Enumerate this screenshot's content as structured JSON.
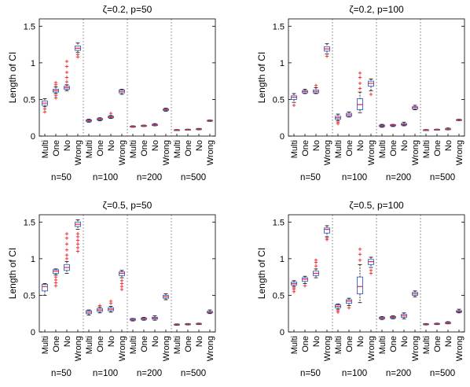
{
  "figure": {
    "ylabel": "Length of CI",
    "method_labels": [
      "Multi",
      "One",
      "No",
      "Wrong"
    ],
    "group_labels": [
      "n=50",
      "n=100",
      "n=200",
      "n=500"
    ],
    "y_ticks": [
      "0",
      "0.5",
      "1",
      "1.5"
    ],
    "colors": {
      "box": "#3a5fcd",
      "median": "#e8282b",
      "outlier": "#e8282b",
      "whisker": "#000000",
      "separator": "#555555"
    }
  },
  "chart_data": [
    {
      "type": "boxplot",
      "title": "ζ=0.2, p=50",
      "ylabel": "Length of CI",
      "ylim": [
        0,
        1.6
      ],
      "yticks": [
        0,
        0.5,
        1,
        1.5
      ],
      "groups": [
        "n=50",
        "n=100",
        "n=200",
        "n=500"
      ],
      "methods": [
        "Multi",
        "One",
        "No",
        "Wrong"
      ],
      "boxes": [
        {
          "group": "n=50",
          "method": "Multi",
          "min": 0.4,
          "q1": 0.42,
          "median": 0.45,
          "q3": 0.48,
          "max": 0.51,
          "outliers": [
            0.33,
            0.37
          ]
        },
        {
          "group": "n=50",
          "method": "One",
          "min": 0.58,
          "q1": 0.6,
          "median": 0.62,
          "q3": 0.64,
          "max": 0.67,
          "outliers": [
            0.52,
            0.55,
            0.7,
            0.73
          ]
        },
        {
          "group": "n=50",
          "method": "No",
          "min": 0.62,
          "q1": 0.64,
          "median": 0.66,
          "q3": 0.68,
          "max": 0.7,
          "outliers": [
            0.74,
            0.8,
            0.87,
            0.95,
            1.02
          ]
        },
        {
          "group": "n=50",
          "method": "Wrong",
          "min": 1.14,
          "q1": 1.17,
          "median": 1.2,
          "q3": 1.23,
          "max": 1.27,
          "outliers": [
            1.08,
            1.11
          ]
        },
        {
          "group": "n=100",
          "method": "Multi",
          "min": 0.19,
          "q1": 0.2,
          "median": 0.21,
          "q3": 0.22,
          "max": 0.23,
          "outliers": []
        },
        {
          "group": "n=100",
          "method": "One",
          "min": 0.21,
          "q1": 0.22,
          "median": 0.23,
          "q3": 0.24,
          "max": 0.25,
          "outliers": []
        },
        {
          "group": "n=100",
          "method": "No",
          "min": 0.24,
          "q1": 0.25,
          "median": 0.26,
          "q3": 0.27,
          "max": 0.28,
          "outliers": [
            0.31
          ]
        },
        {
          "group": "n=100",
          "method": "Wrong",
          "min": 0.57,
          "q1": 0.59,
          "median": 0.61,
          "q3": 0.63,
          "max": 0.64,
          "outliers": []
        },
        {
          "group": "n=200",
          "method": "Multi",
          "min": 0.12,
          "q1": 0.125,
          "median": 0.13,
          "q3": 0.135,
          "max": 0.14,
          "outliers": []
        },
        {
          "group": "n=200",
          "method": "One",
          "min": 0.13,
          "q1": 0.135,
          "median": 0.14,
          "q3": 0.145,
          "max": 0.15,
          "outliers": []
        },
        {
          "group": "n=200",
          "method": "No",
          "min": 0.14,
          "q1": 0.145,
          "median": 0.15,
          "q3": 0.16,
          "max": 0.17,
          "outliers": []
        },
        {
          "group": "n=200",
          "method": "Wrong",
          "min": 0.34,
          "q1": 0.35,
          "median": 0.36,
          "q3": 0.37,
          "max": 0.38,
          "outliers": []
        },
        {
          "group": "n=500",
          "method": "Multi",
          "min": 0.075,
          "q1": 0.08,
          "median": 0.083,
          "q3": 0.086,
          "max": 0.09,
          "outliers": []
        },
        {
          "group": "n=500",
          "method": "One",
          "min": 0.08,
          "q1": 0.085,
          "median": 0.088,
          "q3": 0.091,
          "max": 0.095,
          "outliers": []
        },
        {
          "group": "n=500",
          "method": "No",
          "min": 0.085,
          "q1": 0.09,
          "median": 0.095,
          "q3": 0.1,
          "max": 0.105,
          "outliers": []
        },
        {
          "group": "n=500",
          "method": "Wrong",
          "min": 0.2,
          "q1": 0.205,
          "median": 0.21,
          "q3": 0.215,
          "max": 0.22,
          "outliers": []
        }
      ]
    },
    {
      "type": "boxplot",
      "title": "ζ=0.2, p=100",
      "ylabel": "Length of CI",
      "ylim": [
        0,
        1.6
      ],
      "yticks": [
        0,
        0.5,
        1,
        1.5
      ],
      "groups": [
        "n=50",
        "n=100",
        "n=200",
        "n=500"
      ],
      "methods": [
        "Multi",
        "One",
        "No",
        "Wrong"
      ],
      "boxes": [
        {
          "group": "n=50",
          "method": "Multi",
          "min": 0.46,
          "q1": 0.5,
          "median": 0.53,
          "q3": 0.55,
          "max": 0.58,
          "outliers": [
            0.42
          ]
        },
        {
          "group": "n=50",
          "method": "One",
          "min": 0.58,
          "q1": 0.59,
          "median": 0.61,
          "q3": 0.62,
          "max": 0.64,
          "outliers": []
        },
        {
          "group": "n=50",
          "method": "No",
          "min": 0.58,
          "q1": 0.59,
          "median": 0.61,
          "q3": 0.63,
          "max": 0.66,
          "outliers": [
            0.69
          ]
        },
        {
          "group": "n=50",
          "method": "Wrong",
          "min": 1.12,
          "q1": 1.16,
          "median": 1.19,
          "q3": 1.22,
          "max": 1.26,
          "outliers": [
            1.09
          ]
        },
        {
          "group": "n=100",
          "method": "Multi",
          "min": 0.21,
          "q1": 0.23,
          "median": 0.25,
          "q3": 0.27,
          "max": 0.3,
          "outliers": [
            0.17,
            0.19
          ]
        },
        {
          "group": "n=100",
          "method": "One",
          "min": 0.26,
          "q1": 0.27,
          "median": 0.29,
          "q3": 0.31,
          "max": 0.33,
          "outliers": []
        },
        {
          "group": "n=100",
          "method": "No",
          "min": 0.32,
          "q1": 0.36,
          "median": 0.43,
          "q3": 0.51,
          "max": 0.6,
          "outliers": [
            0.65,
            0.72,
            0.8,
            0.86
          ]
        },
        {
          "group": "n=100",
          "method": "Wrong",
          "min": 0.62,
          "q1": 0.68,
          "median": 0.72,
          "q3": 0.75,
          "max": 0.78,
          "outliers": [
            0.57
          ]
        },
        {
          "group": "n=200",
          "method": "Multi",
          "min": 0.12,
          "q1": 0.13,
          "median": 0.14,
          "q3": 0.15,
          "max": 0.16,
          "outliers": []
        },
        {
          "group": "n=200",
          "method": "One",
          "min": 0.13,
          "q1": 0.14,
          "median": 0.15,
          "q3": 0.155,
          "max": 0.16,
          "outliers": []
        },
        {
          "group": "n=200",
          "method": "No",
          "min": 0.14,
          "q1": 0.15,
          "median": 0.16,
          "q3": 0.17,
          "max": 0.19,
          "outliers": []
        },
        {
          "group": "n=200",
          "method": "Wrong",
          "min": 0.36,
          "q1": 0.37,
          "median": 0.39,
          "q3": 0.4,
          "max": 0.42,
          "outliers": []
        },
        {
          "group": "n=500",
          "method": "Multi",
          "min": 0.075,
          "q1": 0.08,
          "median": 0.083,
          "q3": 0.086,
          "max": 0.09,
          "outliers": []
        },
        {
          "group": "n=500",
          "method": "One",
          "min": 0.08,
          "q1": 0.085,
          "median": 0.088,
          "q3": 0.091,
          "max": 0.095,
          "outliers": []
        },
        {
          "group": "n=500",
          "method": "No",
          "min": 0.085,
          "q1": 0.09,
          "median": 0.095,
          "q3": 0.1,
          "max": 0.11,
          "outliers": []
        },
        {
          "group": "n=500",
          "method": "Wrong",
          "min": 0.21,
          "q1": 0.215,
          "median": 0.22,
          "q3": 0.225,
          "max": 0.23,
          "outliers": []
        }
      ]
    },
    {
      "type": "boxplot",
      "title": "ζ=0.5, p=50",
      "ylabel": "Length of CI",
      "ylim": [
        0,
        1.6
      ],
      "yticks": [
        0,
        0.5,
        1,
        1.5
      ],
      "groups": [
        "n=50",
        "n=100",
        "n=200",
        "n=500"
      ],
      "methods": [
        "Multi",
        "One",
        "No",
        "Wrong"
      ],
      "boxes": [
        {
          "group": "n=50",
          "method": "Multi",
          "min": 0.5,
          "q1": 0.56,
          "median": 0.62,
          "q3": 0.65,
          "max": 0.66,
          "outliers": []
        },
        {
          "group": "n=50",
          "method": "One",
          "min": 0.78,
          "q1": 0.8,
          "median": 0.83,
          "q3": 0.85,
          "max": 0.86,
          "outliers": [
            0.63,
            0.67,
            0.71,
            0.75
          ]
        },
        {
          "group": "n=50",
          "method": "No",
          "min": 0.8,
          "q1": 0.84,
          "median": 0.88,
          "q3": 0.92,
          "max": 0.96,
          "outliers": [
            1.0,
            1.05,
            1.12,
            1.2,
            1.28,
            1.34
          ]
        },
        {
          "group": "n=50",
          "method": "Wrong",
          "min": 1.4,
          "q1": 1.44,
          "median": 1.47,
          "q3": 1.5,
          "max": 1.53,
          "outliers": [
            1.1,
            1.15,
            1.2,
            1.25,
            1.3,
            1.34
          ]
        },
        {
          "group": "n=100",
          "method": "Multi",
          "min": 0.23,
          "q1": 0.25,
          "median": 0.27,
          "q3": 0.29,
          "max": 0.3,
          "outliers": []
        },
        {
          "group": "n=100",
          "method": "One",
          "min": 0.26,
          "q1": 0.28,
          "median": 0.3,
          "q3": 0.32,
          "max": 0.34,
          "outliers": [
            0.36
          ]
        },
        {
          "group": "n=100",
          "method": "No",
          "min": 0.27,
          "q1": 0.29,
          "median": 0.31,
          "q3": 0.33,
          "max": 0.35,
          "outliers": [
            0.39,
            0.42
          ]
        },
        {
          "group": "n=100",
          "method": "Wrong",
          "min": 0.74,
          "q1": 0.77,
          "median": 0.8,
          "q3": 0.82,
          "max": 0.84,
          "outliers": [
            0.58,
            0.62,
            0.66,
            0.7
          ]
        },
        {
          "group": "n=200",
          "method": "Multi",
          "min": 0.15,
          "q1": 0.16,
          "median": 0.17,
          "q3": 0.18,
          "max": 0.185,
          "outliers": []
        },
        {
          "group": "n=200",
          "method": "One",
          "min": 0.16,
          "q1": 0.17,
          "median": 0.18,
          "q3": 0.19,
          "max": 0.2,
          "outliers": []
        },
        {
          "group": "n=200",
          "method": "No",
          "min": 0.16,
          "q1": 0.175,
          "median": 0.19,
          "q3": 0.2,
          "max": 0.22,
          "outliers": []
        },
        {
          "group": "n=200",
          "method": "Wrong",
          "min": 0.44,
          "q1": 0.46,
          "median": 0.48,
          "q3": 0.5,
          "max": 0.52,
          "outliers": []
        },
        {
          "group": "n=500",
          "method": "Multi",
          "min": 0.09,
          "q1": 0.095,
          "median": 0.1,
          "q3": 0.105,
          "max": 0.11,
          "outliers": []
        },
        {
          "group": "n=500",
          "method": "One",
          "min": 0.095,
          "q1": 0.1,
          "median": 0.105,
          "q3": 0.11,
          "max": 0.115,
          "outliers": []
        },
        {
          "group": "n=500",
          "method": "No",
          "min": 0.1,
          "q1": 0.105,
          "median": 0.11,
          "q3": 0.115,
          "max": 0.12,
          "outliers": []
        },
        {
          "group": "n=500",
          "method": "Wrong",
          "min": 0.25,
          "q1": 0.26,
          "median": 0.27,
          "q3": 0.28,
          "max": 0.3,
          "outliers": []
        }
      ]
    },
    {
      "type": "boxplot",
      "title": "ζ=0.5, p=100",
      "ylabel": "Length of CI",
      "ylim": [
        0,
        1.6
      ],
      "yticks": [
        0,
        0.5,
        1,
        1.5
      ],
      "groups": [
        "n=50",
        "n=100",
        "n=200",
        "n=500"
      ],
      "methods": [
        "Multi",
        "One",
        "No",
        "Wrong"
      ],
      "boxes": [
        {
          "group": "n=50",
          "method": "Multi",
          "min": 0.62,
          "q1": 0.64,
          "median": 0.66,
          "q3": 0.68,
          "max": 0.7,
          "outliers": [
            0.55,
            0.58,
            0.6
          ]
        },
        {
          "group": "n=50",
          "method": "One",
          "min": 0.66,
          "q1": 0.69,
          "median": 0.72,
          "q3": 0.74,
          "max": 0.76,
          "outliers": [
            0.63
          ]
        },
        {
          "group": "n=50",
          "method": "No",
          "min": 0.74,
          "q1": 0.77,
          "median": 0.8,
          "q3": 0.83,
          "max": 0.86,
          "outliers": [
            0.9,
            0.95,
            0.98
          ]
        },
        {
          "group": "n=50",
          "method": "Wrong",
          "min": 1.3,
          "q1": 1.35,
          "median": 1.4,
          "q3": 1.42,
          "max": 1.45,
          "outliers": [
            1.26,
            1.28
          ]
        },
        {
          "group": "n=100",
          "method": "Multi",
          "min": 0.31,
          "q1": 0.33,
          "median": 0.35,
          "q3": 0.37,
          "max": 0.38,
          "outliers": [
            0.27,
            0.29
          ]
        },
        {
          "group": "n=100",
          "method": "One",
          "min": 0.36,
          "q1": 0.39,
          "median": 0.42,
          "q3": 0.44,
          "max": 0.46,
          "outliers": [
            0.33
          ]
        },
        {
          "group": "n=100",
          "method": "No",
          "min": 0.4,
          "q1": 0.52,
          "median": 0.62,
          "q3": 0.75,
          "max": 0.92,
          "outliers": [
            0.98,
            1.06,
            1.13
          ]
        },
        {
          "group": "n=100",
          "method": "Wrong",
          "min": 0.88,
          "q1": 0.92,
          "median": 0.96,
          "q3": 0.99,
          "max": 1.02,
          "outliers": [
            0.8,
            0.84
          ]
        },
        {
          "group": "n=200",
          "method": "Multi",
          "min": 0.17,
          "q1": 0.18,
          "median": 0.19,
          "q3": 0.2,
          "max": 0.21,
          "outliers": []
        },
        {
          "group": "n=200",
          "method": "One",
          "min": 0.18,
          "q1": 0.19,
          "median": 0.2,
          "q3": 0.21,
          "max": 0.22,
          "outliers": []
        },
        {
          "group": "n=200",
          "method": "No",
          "min": 0.18,
          "q1": 0.2,
          "median": 0.22,
          "q3": 0.24,
          "max": 0.26,
          "outliers": []
        },
        {
          "group": "n=200",
          "method": "Wrong",
          "min": 0.48,
          "q1": 0.5,
          "median": 0.52,
          "q3": 0.54,
          "max": 0.56,
          "outliers": []
        },
        {
          "group": "n=500",
          "method": "Multi",
          "min": 0.095,
          "q1": 0.1,
          "median": 0.105,
          "q3": 0.11,
          "max": 0.115,
          "outliers": []
        },
        {
          "group": "n=500",
          "method": "One",
          "min": 0.1,
          "q1": 0.105,
          "median": 0.11,
          "q3": 0.115,
          "max": 0.12,
          "outliers": []
        },
        {
          "group": "n=500",
          "method": "No",
          "min": 0.11,
          "q1": 0.115,
          "median": 0.12,
          "q3": 0.13,
          "max": 0.14,
          "outliers": []
        },
        {
          "group": "n=500",
          "method": "Wrong",
          "min": 0.26,
          "q1": 0.27,
          "median": 0.28,
          "q3": 0.29,
          "max": 0.31,
          "outliers": []
        }
      ]
    }
  ]
}
